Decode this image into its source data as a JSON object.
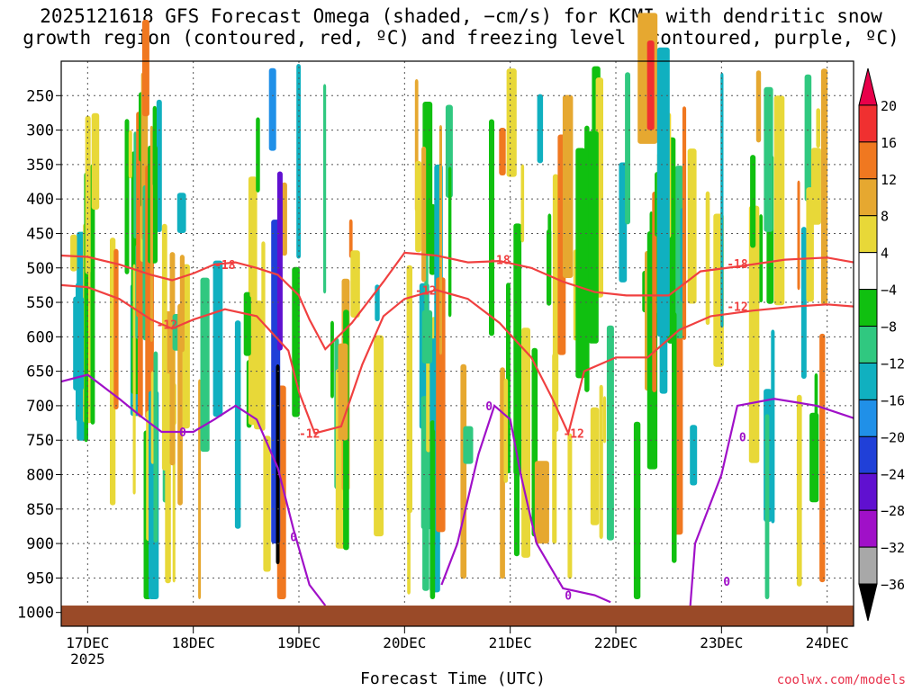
{
  "chart_data": {
    "type": "heatmap",
    "title_line1": "2025121618 GFS Forecast Omega (shaded, −cm/s) for KCMI with dendritic snow",
    "title_line2": "growth region (contoured, red, ºC) and freezing level (contoured, purple, ºC)",
    "xlabel": "Forecast Time (UTC)",
    "credit": "coolwx.com/models",
    "x_ticks": [
      "17DEC",
      "18DEC",
      "19DEC",
      "20DEC",
      "21DEC",
      "22DEC",
      "23DEC",
      "24DEC"
    ],
    "x_year": "2025",
    "x_range_days": [
      16.75,
      24.25
    ],
    "y_ticks": [
      250,
      300,
      350,
      400,
      450,
      500,
      550,
      600,
      650,
      700,
      750,
      800,
      850,
      900,
      950,
      1000
    ],
    "y_range_hpa": [
      200,
      1020
    ],
    "colorbar": {
      "labels": [
        "20",
        "16",
        "12",
        "8",
        "4",
        "−4",
        "−8",
        "−12",
        "−16",
        "−20",
        "−24",
        "−28",
        "−32",
        "−36"
      ],
      "colors": [
        "#e8004a",
        "#f03030",
        "#f07820",
        "#e6a830",
        "#e8d838",
        "#ffffff",
        "#10c010",
        "#30c880",
        "#10b0c0",
        "#2090e8",
        "#2040d8",
        "#6010d0",
        "#a010c8",
        "#a8a8a8",
        "#000000"
      ]
    },
    "contours": [
      {
        "label": "-18",
        "color": "#f04040",
        "points": [
          [
            16.75,
            482
          ],
          [
            17.0,
            484
          ],
          [
            17.3,
            495
          ],
          [
            17.6,
            510
          ],
          [
            17.8,
            518
          ],
          [
            18.0,
            508
          ],
          [
            18.2,
            495
          ],
          [
            18.4,
            492
          ],
          [
            18.6,
            500
          ],
          [
            18.8,
            510
          ],
          [
            19.0,
            540
          ],
          [
            19.1,
            575
          ],
          [
            19.25,
            618
          ],
          [
            19.5,
            580
          ],
          [
            19.8,
            520
          ],
          [
            20.0,
            478
          ],
          [
            20.3,
            482
          ],
          [
            20.6,
            492
          ],
          [
            20.9,
            490
          ],
          [
            21.2,
            500
          ],
          [
            21.5,
            520
          ],
          [
            21.8,
            535
          ],
          [
            22.1,
            540
          ],
          [
            22.5,
            540
          ],
          [
            22.8,
            505
          ],
          [
            23.2,
            497
          ],
          [
            23.6,
            488
          ],
          [
            24.0,
            485
          ],
          [
            24.25,
            492
          ]
        ],
        "label_at": [
          [
            18.3,
            495
          ],
          [
            20.9,
            488
          ],
          [
            23.15,
            494
          ]
        ]
      },
      {
        "label": "-12",
        "color": "#f04040",
        "points": [
          [
            16.75,
            525
          ],
          [
            17.0,
            528
          ],
          [
            17.3,
            545
          ],
          [
            17.6,
            575
          ],
          [
            17.8,
            588
          ],
          [
            18.0,
            575
          ],
          [
            18.3,
            560
          ],
          [
            18.6,
            570
          ],
          [
            18.9,
            620
          ],
          [
            19.0,
            680
          ],
          [
            19.15,
            740
          ],
          [
            19.4,
            730
          ],
          [
            19.6,
            640
          ],
          [
            19.8,
            570
          ],
          [
            20.0,
            545
          ],
          [
            20.3,
            532
          ],
          [
            20.6,
            545
          ],
          [
            20.9,
            580
          ],
          [
            21.2,
            630
          ],
          [
            21.4,
            690
          ],
          [
            21.55,
            740
          ],
          [
            21.7,
            650
          ],
          [
            22.0,
            630
          ],
          [
            22.3,
            630
          ],
          [
            22.6,
            590
          ],
          [
            22.9,
            570
          ],
          [
            23.3,
            562
          ],
          [
            23.7,
            556
          ],
          [
            24.0,
            553
          ],
          [
            24.25,
            556
          ]
        ],
        "label_at": [
          [
            17.75,
            582
          ],
          [
            19.1,
            740
          ],
          [
            20.2,
            532
          ],
          [
            21.6,
            740
          ],
          [
            23.15,
            556
          ]
        ]
      },
      {
        "label": "0",
        "color": "#a010c8",
        "points": [
          [
            16.75,
            665
          ],
          [
            17.0,
            655
          ],
          [
            17.3,
            690
          ],
          [
            17.5,
            715
          ],
          [
            17.7,
            738
          ],
          [
            18.0,
            738
          ],
          [
            18.2,
            720
          ],
          [
            18.4,
            700
          ],
          [
            18.6,
            720
          ],
          [
            18.8,
            790
          ],
          [
            18.95,
            880
          ],
          [
            19.1,
            960
          ],
          [
            19.25,
            990
          ]
        ],
        "label_at": [
          [
            17.9,
            738
          ],
          [
            18.95,
            890
          ]
        ]
      },
      {
        "label": "0",
        "color": "#a010c8",
        "points": [
          [
            20.35,
            960
          ],
          [
            20.5,
            900
          ],
          [
            20.7,
            770
          ],
          [
            20.85,
            700
          ],
          [
            21.0,
            720
          ],
          [
            21.1,
            800
          ],
          [
            21.25,
            900
          ],
          [
            21.5,
            965
          ],
          [
            21.8,
            975
          ],
          [
            21.95,
            985
          ]
        ],
        "label_at": [
          [
            20.8,
            700
          ],
          [
            21.55,
            975
          ]
        ]
      },
      {
        "label": "0",
        "color": "#a010c8",
        "points": [
          [
            22.7,
            1000
          ],
          [
            22.75,
            900
          ],
          [
            22.85,
            860
          ],
          [
            23.0,
            800
          ],
          [
            23.15,
            700
          ],
          [
            23.5,
            690
          ],
          [
            23.9,
            700
          ],
          [
            24.25,
            718
          ]
        ],
        "label_at": [
          [
            23.2,
            745
          ],
          [
            23.05,
            955
          ]
        ]
      }
    ],
    "terrain_color": "#9a4a28"
  }
}
